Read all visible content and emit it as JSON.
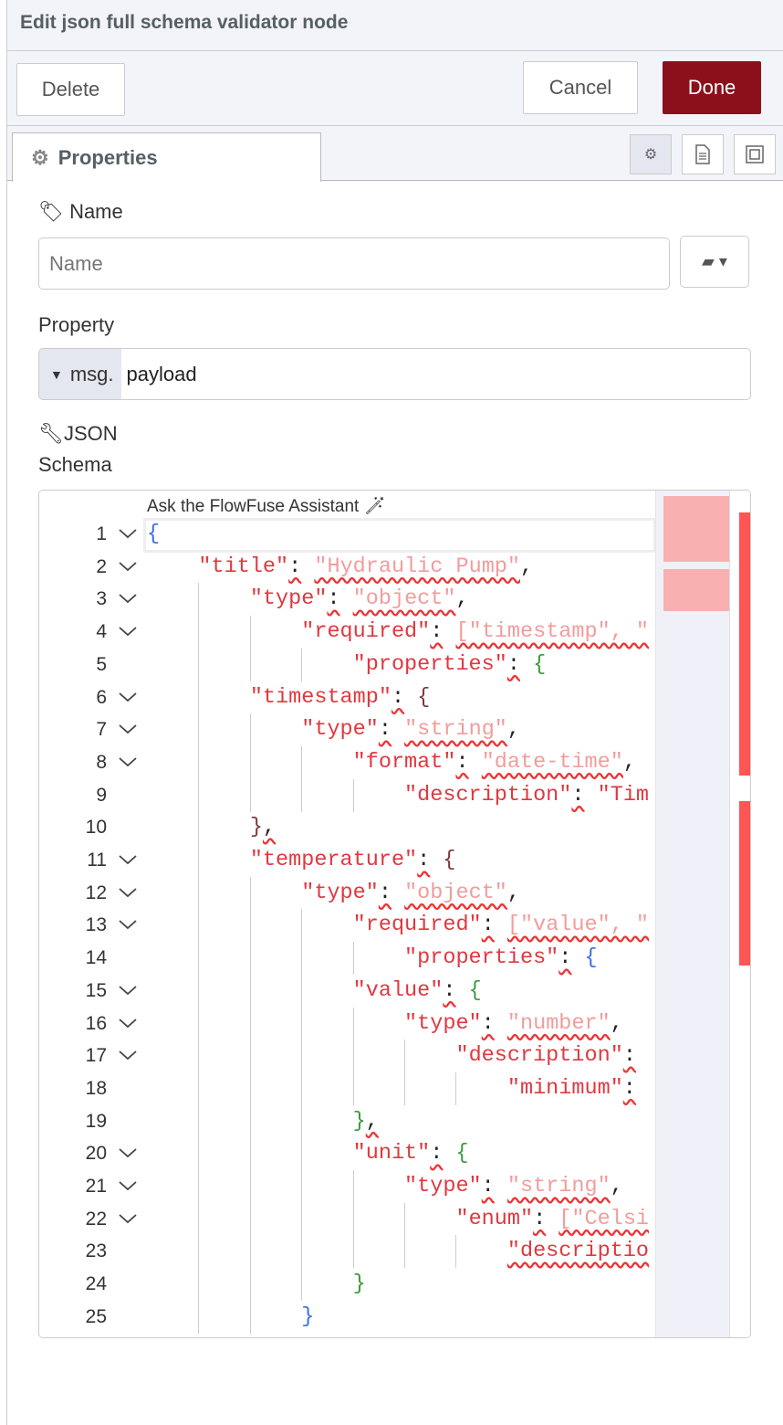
{
  "header": {
    "title": "Edit json full schema validator node"
  },
  "toolbar": {
    "delete": "Delete",
    "cancel": "Cancel",
    "done": "Done",
    "done_color": "#8c101c"
  },
  "tabs": {
    "properties": "Properties",
    "icons": [
      "gear-icon",
      "description-icon",
      "appearance-icon"
    ]
  },
  "form": {
    "name_label": "Name",
    "name_placeholder": "Name",
    "name_value": "",
    "property_label": "Property",
    "property_prefix": "msg.",
    "property_value": "payload",
    "schema_label_1": "JSON",
    "schema_label_2": "Schema"
  },
  "editor": {
    "assistant": "Ask the FlowFuse Assistant",
    "lines": [
      [
        [
          "{",
          "b"
        ]
      ],
      [
        [
          "    "
        ],
        [
          "\"title\"",
          "k"
        ],
        [
          ":",
          "p sq"
        ],
        [
          " "
        ],
        [
          "\"Hydraulic Pump\"",
          "s sq"
        ],
        [
          ",",
          "p"
        ]
      ],
      [
        [
          "        "
        ],
        [
          "\"type\"",
          "k"
        ],
        [
          ":",
          "p sq"
        ],
        [
          " "
        ],
        [
          "\"object\"",
          "s sq"
        ],
        [
          ",",
          "p"
        ]
      ],
      [
        [
          "            "
        ],
        [
          "\"required\"",
          "k"
        ],
        [
          ":",
          "p sq"
        ],
        [
          " "
        ],
        [
          "[\"timestamp\", \"",
          "s sq"
        ]
      ],
      [
        [
          "                "
        ],
        [
          "\"properties\"",
          "k"
        ],
        [
          ":",
          "p sq"
        ],
        [
          " "
        ],
        [
          "{",
          "g"
        ]
      ],
      [
        [
          "        "
        ],
        [
          "\"timestamp\"",
          "k"
        ],
        [
          ":",
          "p sq"
        ],
        [
          " "
        ],
        [
          "{",
          "r"
        ]
      ],
      [
        [
          "            "
        ],
        [
          "\"type\"",
          "k"
        ],
        [
          ":",
          "p sq"
        ],
        [
          " "
        ],
        [
          "\"string\"",
          "s sq"
        ],
        [
          ",",
          "p"
        ]
      ],
      [
        [
          "                "
        ],
        [
          "\"format\"",
          "k"
        ],
        [
          ":",
          "p sq"
        ],
        [
          " "
        ],
        [
          "\"date-time\"",
          "s sq"
        ],
        [
          ",",
          "p"
        ]
      ],
      [
        [
          "                    "
        ],
        [
          "\"description\"",
          "k"
        ],
        [
          ":",
          "p sq"
        ],
        [
          " "
        ],
        [
          "\"Tim",
          "k"
        ]
      ],
      [
        [
          "        "
        ],
        [
          "}",
          "r"
        ],
        [
          ",",
          "p sq"
        ]
      ],
      [
        [
          "        "
        ],
        [
          "\"temperature\"",
          "k"
        ],
        [
          ":",
          "p sq"
        ],
        [
          " "
        ],
        [
          "{",
          "r"
        ]
      ],
      [
        [
          "            "
        ],
        [
          "\"type\"",
          "k"
        ],
        [
          ":",
          "p sq"
        ],
        [
          " "
        ],
        [
          "\"object\"",
          "s sq"
        ],
        [
          ",",
          "p"
        ]
      ],
      [
        [
          "                "
        ],
        [
          "\"required\"",
          "k"
        ],
        [
          ":",
          "p sq"
        ],
        [
          " "
        ],
        [
          "[\"value\", \"",
          "s sq"
        ]
      ],
      [
        [
          "                    "
        ],
        [
          "\"properties\"",
          "k"
        ],
        [
          ":",
          "p sq"
        ],
        [
          " "
        ],
        [
          "{",
          "b"
        ]
      ],
      [
        [
          "                "
        ],
        [
          "\"value\"",
          "k"
        ],
        [
          ":",
          "p sq"
        ],
        [
          " "
        ],
        [
          "{",
          "g"
        ]
      ],
      [
        [
          "                    "
        ],
        [
          "\"type\"",
          "k"
        ],
        [
          ":",
          "p sq"
        ],
        [
          " "
        ],
        [
          "\"number\"",
          "s sq"
        ],
        [
          ",",
          "p"
        ]
      ],
      [
        [
          "                        "
        ],
        [
          "\"description\"",
          "k"
        ],
        [
          ":",
          "p sq"
        ]
      ],
      [
        [
          "                            "
        ],
        [
          "\"minimum\"",
          "k"
        ],
        [
          ":",
          "p sq"
        ]
      ],
      [
        [
          "                "
        ],
        [
          "}",
          "g"
        ],
        [
          ",",
          "p sq"
        ]
      ],
      [
        [
          "                "
        ],
        [
          "\"unit\"",
          "k"
        ],
        [
          ":",
          "p sq"
        ],
        [
          " "
        ],
        [
          "{",
          "g"
        ]
      ],
      [
        [
          "                    "
        ],
        [
          "\"type\"",
          "k"
        ],
        [
          ":",
          "p sq"
        ],
        [
          " "
        ],
        [
          "\"string\"",
          "s sq"
        ],
        [
          ",",
          "p"
        ]
      ],
      [
        [
          "                        "
        ],
        [
          "\"enum\"",
          "k"
        ],
        [
          ":",
          "p sq"
        ],
        [
          " "
        ],
        [
          "[\"Celsi",
          "s sq"
        ]
      ],
      [
        [
          "                            "
        ],
        [
          "\"descriptio",
          "k sq"
        ]
      ],
      [
        [
          "                "
        ],
        [
          "}",
          "g"
        ]
      ],
      [
        [
          "            "
        ],
        [
          "}",
          "b"
        ]
      ]
    ],
    "foldable": [
      1,
      2,
      3,
      4,
      6,
      7,
      8,
      11,
      12,
      13,
      15,
      16,
      17,
      20,
      21,
      22
    ]
  }
}
